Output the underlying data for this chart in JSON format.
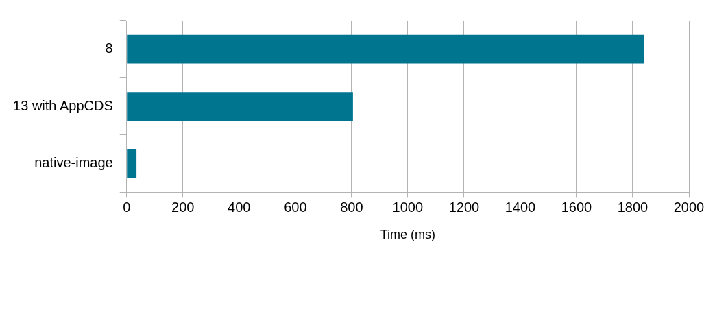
{
  "chart_data": {
    "type": "bar",
    "orientation": "horizontal",
    "categories": [
      "8",
      "13 with AppCDS",
      "native-image"
    ],
    "series": [
      {
        "color": "#00758f",
        "values": [
          1840,
          805,
          35
        ]
      }
    ],
    "xlabel": "Time (ms)",
    "xlim": [
      0,
      2000
    ],
    "xticks": [
      0,
      200,
      400,
      600,
      800,
      1000,
      1200,
      1400,
      1600,
      1800,
      2000
    ],
    "grid": "x",
    "legend": false
  }
}
